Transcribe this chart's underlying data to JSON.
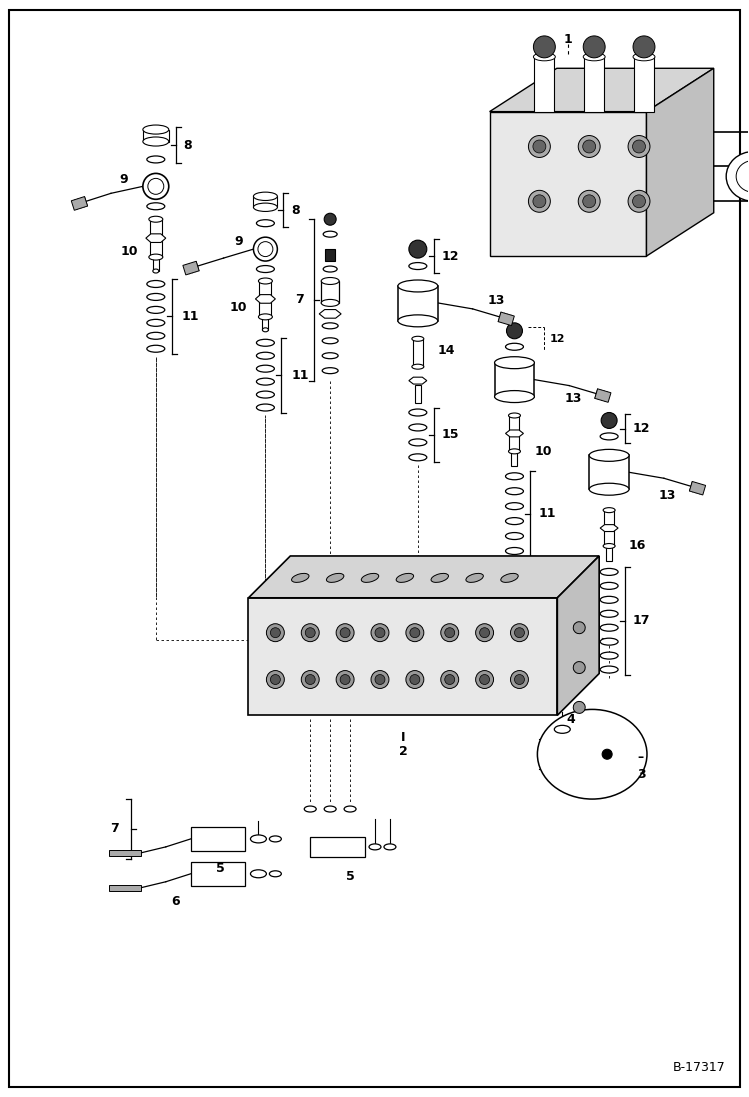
{
  "bg_color": "#ffffff",
  "fig_width": 7.49,
  "fig_height": 10.97,
  "dpi": 100,
  "watermark": "B-17317"
}
